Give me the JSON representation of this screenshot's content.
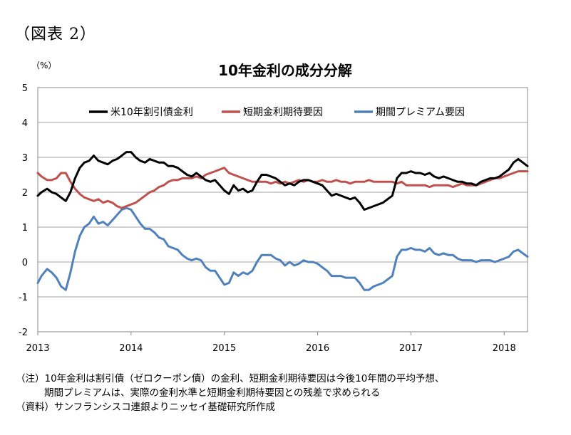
{
  "figure_label": "（図表 2）",
  "notes": {
    "line1": "（注）10年金利は割引債（ゼロクーポン債）の金利、短期金利期待要因は今後10年間の平均予想、",
    "line2": "期間プレミアムは、実際の金利水準と短期金利期待要因との残差で求められる",
    "line3": "（資料）サンフランシスコ連銀よりニッセイ基礎研究所作成"
  },
  "chart_data": {
    "type": "line",
    "title": "10年金利の成分分解",
    "ylabel": "（%）",
    "xlabel": "",
    "ylim": [
      -2,
      5
    ],
    "yticks": [
      -2,
      -1,
      0,
      1,
      2,
      3,
      4,
      5
    ],
    "xlim": [
      2013.0,
      2018.25
    ],
    "xticks": [
      2013,
      2014,
      2015,
      2016,
      2017,
      2018
    ],
    "xtick_labels": [
      "2013",
      "2014",
      "2015",
      "2016",
      "2017",
      "2018"
    ],
    "grid": true,
    "legend_position": "top",
    "colors": {
      "series1": "#000000",
      "series2": "#c0504d",
      "series3": "#4f81bd"
    },
    "series": [
      {
        "name": "米10年割引債金利",
        "x": [
          2013.0,
          2013.04,
          2013.1,
          2013.15,
          2013.2,
          2013.25,
          2013.3,
          2013.35,
          2013.4,
          2013.45,
          2013.5,
          2013.55,
          2013.6,
          2013.65,
          2013.7,
          2013.75,
          2013.8,
          2013.85,
          2013.9,
          2013.95,
          2014.0,
          2014.05,
          2014.1,
          2014.15,
          2014.2,
          2014.25,
          2014.3,
          2014.35,
          2014.4,
          2014.45,
          2014.5,
          2014.55,
          2014.6,
          2014.65,
          2014.7,
          2014.75,
          2014.8,
          2014.85,
          2014.9,
          2014.95,
          2015.0,
          2015.05,
          2015.1,
          2015.15,
          2015.2,
          2015.25,
          2015.3,
          2015.35,
          2015.4,
          2015.45,
          2015.5,
          2015.55,
          2015.6,
          2015.65,
          2015.7,
          2015.75,
          2015.8,
          2015.85,
          2015.9,
          2015.95,
          2016.0,
          2016.05,
          2016.1,
          2016.15,
          2016.2,
          2016.25,
          2016.3,
          2016.35,
          2016.4,
          2016.45,
          2016.5,
          2016.55,
          2016.6,
          2016.65,
          2016.7,
          2016.75,
          2016.8,
          2016.85,
          2016.9,
          2016.95,
          2017.0,
          2017.05,
          2017.1,
          2017.15,
          2017.2,
          2017.25,
          2017.3,
          2017.35,
          2017.4,
          2017.45,
          2017.5,
          2017.55,
          2017.6,
          2017.65,
          2017.7,
          2017.75,
          2017.8,
          2017.85,
          2017.9,
          2017.95,
          2018.0,
          2018.05,
          2018.1,
          2018.15,
          2018.2,
          2018.25
        ],
        "values": [
          1.9,
          2.0,
          2.1,
          2.0,
          1.95,
          1.85,
          1.75,
          2.0,
          2.4,
          2.7,
          2.85,
          2.9,
          3.05,
          2.9,
          2.85,
          2.8,
          2.9,
          2.95,
          3.05,
          3.15,
          3.15,
          3.0,
          2.9,
          2.85,
          2.95,
          2.9,
          2.85,
          2.85,
          2.75,
          2.75,
          2.7,
          2.6,
          2.5,
          2.45,
          2.55,
          2.45,
          2.35,
          2.3,
          2.35,
          2.2,
          2.05,
          1.95,
          2.2,
          2.05,
          2.1,
          2.0,
          2.05,
          2.3,
          2.5,
          2.5,
          2.45,
          2.4,
          2.3,
          2.2,
          2.25,
          2.2,
          2.3,
          2.35,
          2.35,
          2.3,
          2.25,
          2.2,
          2.05,
          1.9,
          1.95,
          1.9,
          1.85,
          1.8,
          1.85,
          1.7,
          1.5,
          1.55,
          1.6,
          1.65,
          1.7,
          1.8,
          1.9,
          2.4,
          2.55,
          2.55,
          2.6,
          2.55,
          2.55,
          2.5,
          2.55,
          2.45,
          2.4,
          2.45,
          2.4,
          2.35,
          2.3,
          2.3,
          2.25,
          2.25,
          2.2,
          2.3,
          2.35,
          2.4,
          2.4,
          2.45,
          2.55,
          2.65,
          2.85,
          2.95,
          2.85,
          2.75
        ]
      },
      {
        "name": "短期金利期待要因",
        "x": [
          2013.0,
          2013.04,
          2013.1,
          2013.15,
          2013.2,
          2013.25,
          2013.3,
          2013.35,
          2013.4,
          2013.45,
          2013.5,
          2013.55,
          2013.6,
          2013.65,
          2013.7,
          2013.75,
          2013.8,
          2013.85,
          2013.9,
          2013.95,
          2014.0,
          2014.05,
          2014.1,
          2014.15,
          2014.2,
          2014.25,
          2014.3,
          2014.35,
          2014.4,
          2014.45,
          2014.5,
          2014.55,
          2014.6,
          2014.65,
          2014.7,
          2014.75,
          2014.8,
          2014.85,
          2014.9,
          2014.95,
          2015.0,
          2015.05,
          2015.1,
          2015.15,
          2015.2,
          2015.25,
          2015.3,
          2015.35,
          2015.4,
          2015.45,
          2015.5,
          2015.55,
          2015.6,
          2015.65,
          2015.7,
          2015.75,
          2015.8,
          2015.85,
          2015.9,
          2015.95,
          2016.0,
          2016.05,
          2016.1,
          2016.15,
          2016.2,
          2016.25,
          2016.3,
          2016.35,
          2016.4,
          2016.45,
          2016.5,
          2016.55,
          2016.6,
          2016.65,
          2016.7,
          2016.75,
          2016.8,
          2016.85,
          2016.9,
          2016.95,
          2017.0,
          2017.05,
          2017.1,
          2017.15,
          2017.2,
          2017.25,
          2017.3,
          2017.35,
          2017.4,
          2017.45,
          2017.5,
          2017.55,
          2017.6,
          2017.65,
          2017.7,
          2017.75,
          2017.8,
          2017.85,
          2017.9,
          2017.95,
          2018.0,
          2018.05,
          2018.1,
          2018.15,
          2018.2,
          2018.25
        ],
        "values": [
          2.55,
          2.45,
          2.35,
          2.35,
          2.4,
          2.55,
          2.55,
          2.3,
          2.1,
          1.95,
          1.85,
          1.8,
          1.75,
          1.8,
          1.7,
          1.75,
          1.7,
          1.6,
          1.55,
          1.6,
          1.65,
          1.7,
          1.8,
          1.9,
          2.0,
          2.05,
          2.15,
          2.2,
          2.3,
          2.35,
          2.35,
          2.4,
          2.4,
          2.4,
          2.45,
          2.4,
          2.5,
          2.55,
          2.6,
          2.65,
          2.7,
          2.55,
          2.5,
          2.45,
          2.4,
          2.35,
          2.3,
          2.3,
          2.3,
          2.3,
          2.25,
          2.3,
          2.25,
          2.3,
          2.25,
          2.3,
          2.35,
          2.3,
          2.35,
          2.3,
          2.3,
          2.35,
          2.3,
          2.3,
          2.35,
          2.3,
          2.3,
          2.25,
          2.3,
          2.3,
          2.3,
          2.35,
          2.3,
          2.3,
          2.3,
          2.3,
          2.3,
          2.25,
          2.3,
          2.2,
          2.2,
          2.2,
          2.2,
          2.2,
          2.15,
          2.2,
          2.2,
          2.2,
          2.2,
          2.15,
          2.2,
          2.25,
          2.2,
          2.2,
          2.2,
          2.25,
          2.3,
          2.35,
          2.4,
          2.4,
          2.45,
          2.5,
          2.55,
          2.6,
          2.6,
          2.6
        ]
      },
      {
        "name": "期間プレミアム要因",
        "x": [
          2013.0,
          2013.04,
          2013.1,
          2013.15,
          2013.2,
          2013.25,
          2013.3,
          2013.35,
          2013.4,
          2013.45,
          2013.5,
          2013.55,
          2013.6,
          2013.65,
          2013.7,
          2013.75,
          2013.8,
          2013.85,
          2013.9,
          2013.95,
          2014.0,
          2014.05,
          2014.1,
          2014.15,
          2014.2,
          2014.25,
          2014.3,
          2014.35,
          2014.4,
          2014.45,
          2014.5,
          2014.55,
          2014.6,
          2014.65,
          2014.7,
          2014.75,
          2014.8,
          2014.85,
          2014.9,
          2014.95,
          2015.0,
          2015.05,
          2015.1,
          2015.15,
          2015.2,
          2015.25,
          2015.3,
          2015.35,
          2015.4,
          2015.45,
          2015.5,
          2015.55,
          2015.6,
          2015.65,
          2015.7,
          2015.75,
          2015.8,
          2015.85,
          2015.9,
          2015.95,
          2016.0,
          2016.05,
          2016.1,
          2016.15,
          2016.2,
          2016.25,
          2016.3,
          2016.35,
          2016.4,
          2016.45,
          2016.5,
          2016.55,
          2016.6,
          2016.65,
          2016.7,
          2016.75,
          2016.8,
          2016.85,
          2016.9,
          2016.95,
          2017.0,
          2017.05,
          2017.1,
          2017.15,
          2017.2,
          2017.25,
          2017.3,
          2017.35,
          2017.4,
          2017.45,
          2017.5,
          2017.55,
          2017.6,
          2017.65,
          2017.7,
          2017.75,
          2017.8,
          2017.85,
          2017.9,
          2017.95,
          2018.0,
          2018.05,
          2018.1,
          2018.15,
          2018.2,
          2018.25
        ],
        "values": [
          -0.6,
          -0.4,
          -0.2,
          -0.3,
          -0.45,
          -0.7,
          -0.8,
          -0.3,
          0.3,
          0.75,
          1.0,
          1.1,
          1.3,
          1.1,
          1.15,
          1.05,
          1.2,
          1.35,
          1.5,
          1.55,
          1.5,
          1.3,
          1.1,
          0.95,
          0.95,
          0.85,
          0.7,
          0.65,
          0.45,
          0.4,
          0.35,
          0.2,
          0.1,
          0.05,
          0.1,
          0.05,
          -0.15,
          -0.25,
          -0.25,
          -0.45,
          -0.65,
          -0.6,
          -0.3,
          -0.4,
          -0.3,
          -0.35,
          -0.25,
          0.0,
          0.2,
          0.2,
          0.2,
          0.1,
          0.05,
          -0.1,
          0.0,
          -0.1,
          -0.05,
          0.05,
          0.0,
          0.0,
          -0.05,
          -0.15,
          -0.25,
          -0.4,
          -0.4,
          -0.4,
          -0.45,
          -0.45,
          -0.45,
          -0.6,
          -0.8,
          -0.8,
          -0.7,
          -0.65,
          -0.6,
          -0.5,
          -0.4,
          0.15,
          0.35,
          0.35,
          0.4,
          0.35,
          0.35,
          0.3,
          0.4,
          0.25,
          0.2,
          0.25,
          0.2,
          0.2,
          0.1,
          0.05,
          0.05,
          0.05,
          0.0,
          0.05,
          0.05,
          0.05,
          0.0,
          0.05,
          0.1,
          0.15,
          0.3,
          0.35,
          0.25,
          0.15
        ]
      }
    ]
  }
}
